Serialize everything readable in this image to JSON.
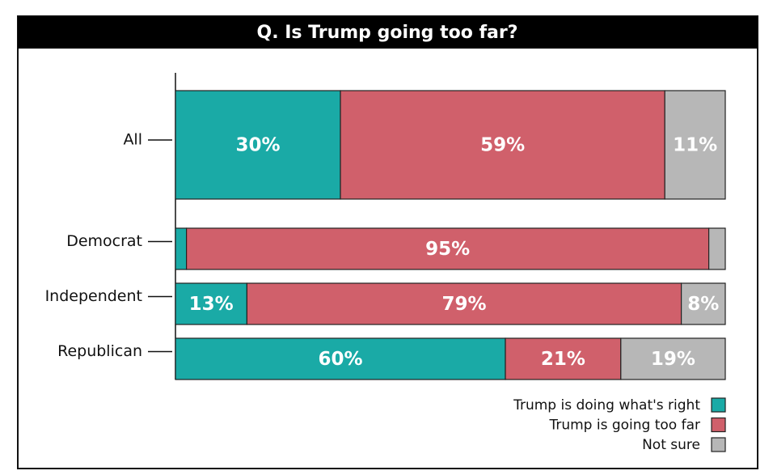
{
  "chart_data": {
    "type": "stacked-barh",
    "title": "Q. Is Trump going too far?",
    "categories": [
      "All",
      "Democrat",
      "Independent",
      "Republican"
    ],
    "series": [
      {
        "name": "Trump is doing what's right",
        "color": "#1aaaa6",
        "values": [
          30,
          2,
          13,
          60
        ],
        "value_labels": [
          "30%",
          null,
          "13%",
          "60%"
        ]
      },
      {
        "name": "Trump is going too far",
        "color": "#d0606b",
        "values": [
          59,
          95,
          79,
          21
        ],
        "value_labels": [
          "59%",
          "95%",
          "79%",
          "21%"
        ]
      },
      {
        "name": "Not sure",
        "color": "#b7b7b7",
        "values": [
          11,
          3,
          8,
          19
        ],
        "value_labels": [
          "11%",
          null,
          "8%",
          "19%"
        ]
      }
    ],
    "xlim": [
      0,
      100
    ],
    "legend": "bottom-right"
  }
}
